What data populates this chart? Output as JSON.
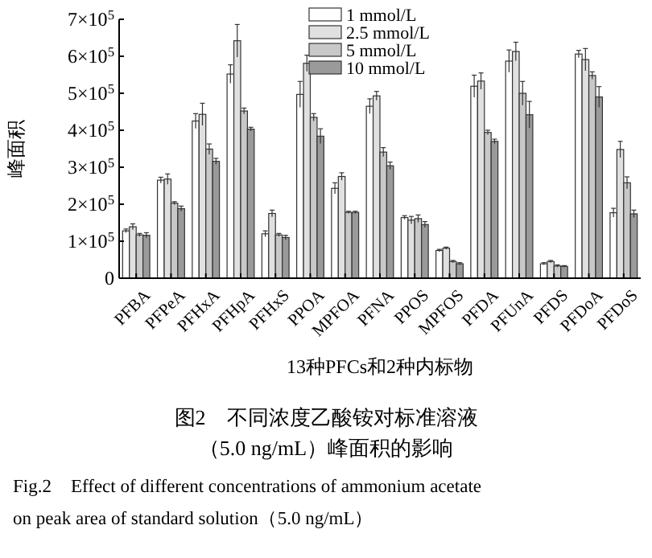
{
  "chart_data": {
    "type": "bar",
    "title": "图2　不同浓度乙酸铵对标准溶液",
    "subtitle": "（5.0 ng/mL）峰面积的影响",
    "annotations": [
      "Fig.2　Effect of different concentrations of ammonium acetate\non peak area of standard solution（5.0 ng/mL）"
    ],
    "xlabel": "13种PFCs和2种内标物",
    "ylabel": "峰面积",
    "categories": [
      "PFBA",
      "PFPeA",
      "PFHxA",
      "PFHpA",
      "PFHxS",
      "PPOA",
      "MPFOA",
      "PFNA",
      "PPOS",
      "MPFOS",
      "PFDA",
      "PFUnA",
      "PFDS",
      "PFDoA",
      "PFDoS"
    ],
    "series": [
      {
        "name": "1 mmol/L",
        "color": "#ffffff",
        "values": [
          128000,
          265000,
          425000,
          552000,
          120000,
          497000,
          243000,
          465000,
          164000,
          75000,
          519000,
          587000,
          39000,
          606000,
          177000
        ],
        "errors": [
          5000,
          8000,
          20000,
          25000,
          8000,
          35000,
          15000,
          20000,
          5000,
          3000,
          30000,
          30000,
          3000,
          10000,
          12000
        ]
      },
      {
        "name": "2.5 mmol/L",
        "color": "#e0e0e0",
        "values": [
          139000,
          268000,
          443000,
          642000,
          175000,
          581000,
          275000,
          493000,
          157000,
          81000,
          533000,
          613000,
          45000,
          591000,
          348000
        ],
        "errors": [
          8000,
          14000,
          30000,
          44000,
          9000,
          22000,
          10000,
          12000,
          10000,
          3000,
          22000,
          25000,
          3000,
          30000,
          22000
        ]
      },
      {
        "name": "5 mmol/L",
        "color": "#c8c8c8",
        "values": [
          117000,
          203000,
          349000,
          452000,
          117000,
          435000,
          178000,
          341000,
          161000,
          45000,
          394000,
          500000,
          33000,
          548000,
          258000
        ],
        "errors": [
          4000,
          4000,
          14000,
          8000,
          4000,
          10000,
          3000,
          12000,
          10000,
          3000,
          6000,
          32000,
          3000,
          10000,
          16000
        ]
      },
      {
        "name": "10 mmol/L",
        "color": "#9a9a9a",
        "values": [
          116000,
          188000,
          316000,
          403000,
          110000,
          384000,
          178000,
          304000,
          145000,
          39000,
          370000,
          442000,
          32000,
          490000,
          174000
        ],
        "errors": [
          7000,
          7000,
          8000,
          5000,
          6000,
          20000,
          3000,
          10000,
          8000,
          3000,
          6000,
          36000,
          2000,
          28000,
          10000
        ]
      }
    ],
    "ylim": [
      0,
      700000
    ],
    "yticks": [
      0,
      {
        "value": 100000,
        "label": "1×10$^{5}$"
      },
      {
        "value": 200000,
        "label": "2×10$^{5}$"
      },
      {
        "value": 300000,
        "label": "3×10$^{5}$"
      },
      {
        "value": 400000,
        "label": "4×10$^{5}$"
      },
      {
        "value": 500000,
        "label": "5×10$^{5}$"
      },
      {
        "value": 600000,
        "label": "6×10$^{5}$"
      },
      {
        "value": 700000,
        "label": "7×10$^{5}$"
      }
    ],
    "legend": "top right"
  }
}
